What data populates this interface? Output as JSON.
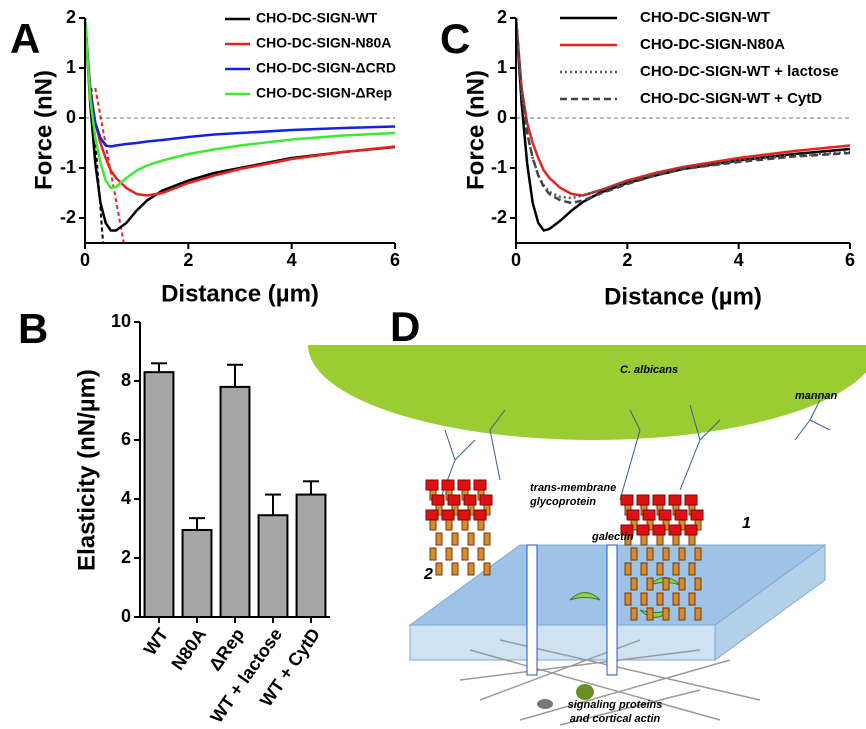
{
  "chart_data": [
    {
      "type": "line",
      "label": "A",
      "xlabel": "Distance (µm)",
      "ylabel": "Force (nN)",
      "xlim": [
        0,
        6
      ],
      "xticks": [
        0,
        2,
        4,
        6
      ],
      "ylim": [
        -2.5,
        2
      ],
      "yticks": [
        -2,
        -1,
        0,
        1,
        2
      ],
      "reference_line": true,
      "x": [
        0,
        0.1,
        0.2,
        0.3,
        0.4,
        0.5,
        0.6,
        0.8,
        1,
        1.2,
        1.5,
        2,
        2.5,
        3,
        4,
        5,
        6
      ],
      "series": [
        {
          "name": "CHO-DC-SIGN-WT",
          "color": "#000000",
          "style": "solid",
          "values": [
            2,
            0.3,
            -0.9,
            -1.7,
            -2.1,
            -2.25,
            -2.25,
            -2.1,
            -1.85,
            -1.65,
            -1.45,
            -1.25,
            -1.1,
            -1.0,
            -0.8,
            -0.68,
            -0.58
          ]
        },
        {
          "name": "CHO-DC-SIGN-N80A",
          "color": "#e8221c",
          "style": "solid",
          "values": [
            2,
            0.6,
            -0.1,
            -0.5,
            -0.8,
            -1.05,
            -1.2,
            -1.4,
            -1.52,
            -1.55,
            -1.5,
            -1.3,
            -1.15,
            -1.02,
            -0.82,
            -0.68,
            -0.57
          ]
        },
        {
          "name": "CHO-DC-SIGN-ΔCRD",
          "color": "#1520e0",
          "style": "solid",
          "values": [
            2,
            0.5,
            -0.1,
            -0.4,
            -0.55,
            -0.57,
            -0.55,
            -0.52,
            -0.5,
            -0.47,
            -0.44,
            -0.38,
            -0.33,
            -0.3,
            -0.24,
            -0.2,
            -0.17
          ]
        },
        {
          "name": "CHO-DC-SIGN-ΔRep",
          "color": "#3fe832",
          "style": "solid",
          "values": [
            2,
            0.4,
            -0.4,
            -0.9,
            -1.25,
            -1.4,
            -1.38,
            -1.2,
            -1.05,
            -0.95,
            -0.85,
            -0.72,
            -0.63,
            -0.55,
            -0.43,
            -0.35,
            -0.3
          ]
        }
      ],
      "fits": [
        {
          "color": "#000000",
          "x": [
            0.12,
            0.35
          ],
          "values": [
            0.6,
            -2.5
          ]
        },
        {
          "color": "#e8221c",
          "x": [
            0.2,
            0.75
          ],
          "values": [
            0.6,
            -2.5
          ]
        }
      ]
    },
    {
      "type": "bar",
      "label": "B",
      "ylabel": "Elasticity (nN/µm)",
      "color": "#a6a6a6",
      "categories": [
        "WT",
        "N80A",
        "ΔRep",
        "WT + lactose",
        "WT + CytD"
      ],
      "values": [
        8.3,
        2.95,
        7.8,
        3.45,
        4.15
      ],
      "errors": [
        0.3,
        0.4,
        0.75,
        0.7,
        0.45
      ],
      "ylim": [
        0,
        10
      ],
      "yticks": [
        0,
        2,
        4,
        6,
        8,
        10
      ]
    },
    {
      "type": "line",
      "label": "C",
      "xlabel": "Distance (µm)",
      "ylabel": "Force (nN)",
      "xlim": [
        0,
        6
      ],
      "xticks": [
        0,
        2,
        4,
        6
      ],
      "ylim": [
        -2.5,
        2
      ],
      "yticks": [
        -2,
        -1,
        0,
        1,
        2
      ],
      "reference_line": true,
      "x": [
        0,
        0.1,
        0.2,
        0.3,
        0.4,
        0.5,
        0.6,
        0.8,
        1,
        1.2,
        1.5,
        2,
        2.5,
        3,
        4,
        5,
        6
      ],
      "series": [
        {
          "name": "CHO-DC-SIGN-WT",
          "color": "#000000",
          "style": "solid",
          "values": [
            2,
            0.3,
            -0.9,
            -1.7,
            -2.1,
            -2.25,
            -2.22,
            -2.05,
            -1.85,
            -1.68,
            -1.5,
            -1.3,
            -1.15,
            -1.02,
            -0.85,
            -0.72,
            -0.62
          ]
        },
        {
          "name": "CHO-DC-SIGN-N80A",
          "color": "#e8221c",
          "style": "solid",
          "values": [
            2,
            0.6,
            -0.1,
            -0.5,
            -0.8,
            -1.05,
            -1.2,
            -1.4,
            -1.52,
            -1.55,
            -1.45,
            -1.25,
            -1.1,
            -0.98,
            -0.8,
            -0.66,
            -0.55
          ]
        },
        {
          "name": "CHO-DC-SIGN-WT + lactose",
          "color": "#555555",
          "style": "dotted",
          "values": [
            2,
            0.5,
            -0.3,
            -0.8,
            -1.15,
            -1.35,
            -1.48,
            -1.58,
            -1.6,
            -1.55,
            -1.45,
            -1.27,
            -1.12,
            -1.0,
            -0.85,
            -0.75,
            -0.68
          ]
        },
        {
          "name": "CHO-DC-SIGN-WT + CytD",
          "color": "#444444",
          "style": "dashed",
          "values": [
            2,
            0.5,
            -0.3,
            -0.8,
            -1.15,
            -1.38,
            -1.52,
            -1.65,
            -1.7,
            -1.65,
            -1.52,
            -1.32,
            -1.15,
            -1.02,
            -0.88,
            -0.77,
            -0.7
          ]
        }
      ]
    }
  ],
  "diagram": {
    "label": "D",
    "organism": "C. albicans",
    "mannan": "mannan",
    "glycoprotein": [
      "trans-membrane",
      "glycoprotein"
    ],
    "galectin": "galectin",
    "cluster_1": "1",
    "cluster_2": "2",
    "actin": [
      "signaling proteins",
      "and cortical actin"
    ]
  }
}
